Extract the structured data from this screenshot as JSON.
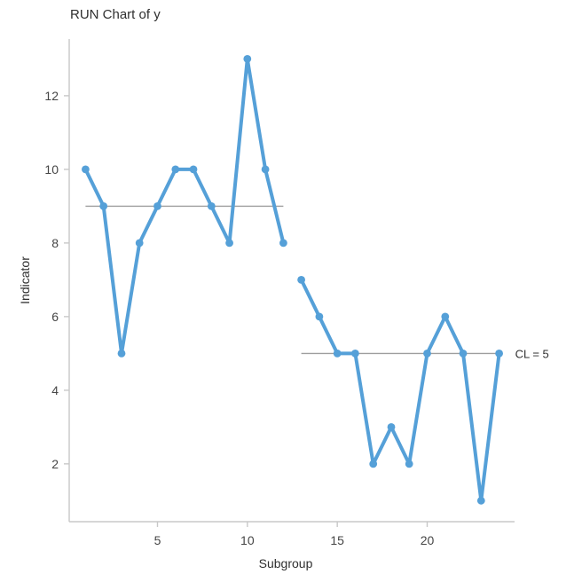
{
  "chart_data": {
    "type": "line",
    "title": "RUN Chart of y",
    "xlabel": "Subgroup",
    "ylabel": "Indicator",
    "grid": false,
    "legend": "none",
    "xlim": [
      0.09,
      24.86
    ],
    "ylim": [
      0.43,
      13.54
    ],
    "xticks": [
      5,
      10,
      15,
      20
    ],
    "yticks": [
      2,
      4,
      6,
      8,
      10,
      12
    ],
    "parts": [
      {
        "x": [
          1,
          2,
          3,
          4,
          5,
          6,
          7,
          8,
          9,
          10,
          11,
          12
        ],
        "values": [
          10,
          9,
          5,
          8,
          9,
          10,
          10,
          9,
          8,
          13,
          10,
          8
        ],
        "center_line": {
          "value": 9,
          "label": ""
        }
      },
      {
        "x": [
          13,
          14,
          15,
          16,
          17,
          18,
          19,
          20,
          21,
          22,
          23,
          24
        ],
        "values": [
          7,
          6,
          5,
          5,
          2,
          3,
          2,
          5,
          6,
          5,
          1,
          5
        ],
        "center_line": {
          "value": 5,
          "label": "CL = 5"
        }
      }
    ],
    "annotation": "CL = 5",
    "colors": {
      "line": "#55A0D8",
      "marker": "#55A0D8",
      "center_line": "#9E9E9E",
      "axis": "#C8C8C8",
      "tick_label": "#454545",
      "text": "#2F2F2F"
    }
  }
}
